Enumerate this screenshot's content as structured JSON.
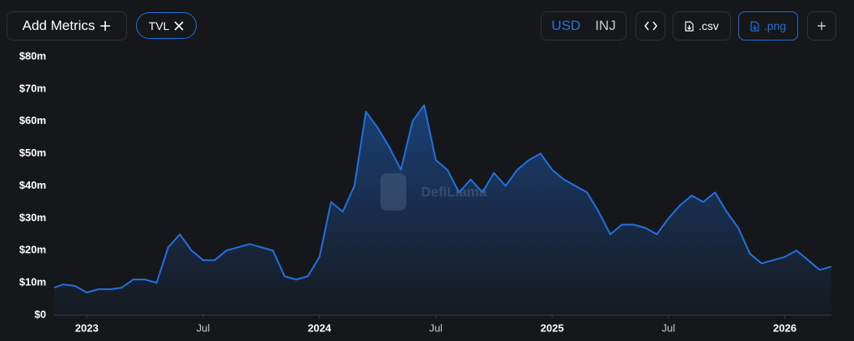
{
  "toolbar": {
    "add_metrics": "Add Metrics",
    "currencies": [
      "USD",
      "INJ"
    ],
    "csv": ".csv",
    "png": ".png"
  },
  "watermark": "DefiLlama",
  "chart_data": {
    "type": "area",
    "x": [
      2022.86,
      2022.9,
      2022.95,
      2023.0,
      2023.05,
      2023.1,
      2023.15,
      2023.2,
      2023.25,
      2023.3,
      2023.35,
      2023.4,
      2023.45,
      2023.5,
      2023.55,
      2023.6,
      2023.65,
      2023.7,
      2023.75,
      2023.8,
      2023.85,
      2023.9,
      2023.95,
      2024.0,
      2024.05,
      2024.1,
      2024.15,
      2024.2,
      2024.25,
      2024.3,
      2024.35,
      2024.4,
      2024.45,
      2024.5,
      2024.55,
      2024.6,
      2024.65,
      2024.7,
      2024.75,
      2024.8,
      2024.85,
      2024.9,
      2024.95,
      2025.0,
      2025.05,
      2025.1,
      2025.15,
      2025.2,
      2025.25,
      2025.3,
      2025.35,
      2025.4,
      2025.45,
      2025.5,
      2025.55,
      2025.6,
      2025.65,
      2025.7,
      2025.75,
      2025.8,
      2025.85,
      2025.9,
      2025.95,
      2026.0,
      2026.05,
      2026.1,
      2026.15,
      2026.2
    ],
    "series": [
      {
        "name": "TVL",
        "color": "#2172e5",
        "values": [
          8500000,
          9500000,
          9000000,
          7000000,
          8000000,
          8000000,
          8500000,
          11000000,
          11000000,
          10000000,
          21000000,
          25000000,
          20000000,
          17000000,
          17000000,
          20000000,
          21000000,
          22000000,
          21000000,
          20000000,
          12000000,
          11000000,
          12000000,
          18000000,
          35000000,
          32000000,
          40000000,
          63000000,
          58000000,
          52000000,
          45000000,
          60000000,
          65000000,
          48000000,
          45000000,
          38000000,
          42000000,
          38000000,
          44000000,
          40000000,
          45000000,
          48000000,
          50000000,
          45000000,
          42000000,
          40000000,
          38000000,
          32000000,
          25000000,
          28000000,
          28000000,
          27000000,
          25000000,
          30000000,
          34000000,
          37000000,
          35000000,
          38000000,
          32000000,
          27000000,
          19000000,
          16000000,
          17000000,
          18000000,
          20000000,
          17000000,
          14000000,
          15000000
        ]
      }
    ],
    "xlim": [
      2022.86,
      2026.2
    ],
    "xticks": [
      {
        "value": 2023,
        "label": "2023"
      },
      {
        "value": 2023.5,
        "label": "Jul"
      },
      {
        "value": 2024,
        "label": "2024"
      },
      {
        "value": 2024.5,
        "label": "Jul"
      },
      {
        "value": 2025,
        "label": "2025"
      },
      {
        "value": 2025.5,
        "label": "Jul"
      },
      {
        "value": 2026,
        "label": "2026"
      }
    ],
    "ylim": [
      0,
      80000000
    ],
    "yticks": [
      {
        "value": 0,
        "label": "$0"
      },
      {
        "value": 10000000,
        "label": "$10m"
      },
      {
        "value": 20000000,
        "label": "$20m"
      },
      {
        "value": 30000000,
        "label": "$30m"
      },
      {
        "value": 40000000,
        "label": "$40m"
      },
      {
        "value": 50000000,
        "label": "$50m"
      },
      {
        "value": 60000000,
        "label": "$60m"
      },
      {
        "value": 70000000,
        "label": "$70m"
      },
      {
        "value": 80000000,
        "label": "$80m"
      }
    ]
  }
}
